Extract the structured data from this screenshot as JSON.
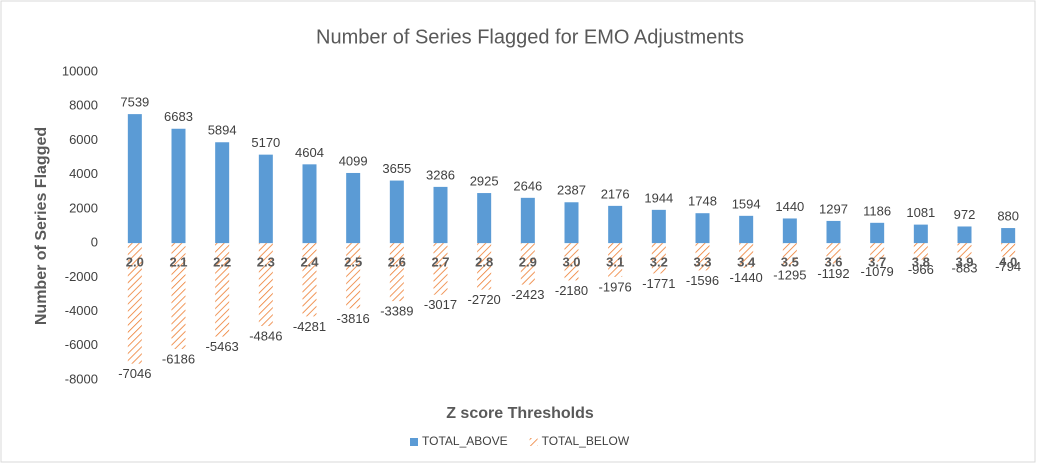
{
  "chart_data": {
    "type": "bar",
    "title": "Number of Series Flagged for EMO Adjustments",
    "x_label": "Z score Thresholds",
    "y_label": "Number of Series Flagged",
    "categories": [
      "2.0",
      "2.1",
      "2.2",
      "2.3",
      "2.4",
      "2.5",
      "2.6",
      "2.7",
      "2.8",
      "2.9",
      "3.0",
      "3.1",
      "3.2",
      "3.3",
      "3.4",
      "3.5",
      "3.6",
      "3.7",
      "3.8",
      "3.9",
      "4.0"
    ],
    "series": [
      {
        "name": "TOTAL_ABOVE",
        "color": "#5b9bd5",
        "fill": "solid",
        "values": [
          7539,
          6683,
          5894,
          5170,
          4604,
          4099,
          3655,
          3286,
          2925,
          2646,
          2387,
          2176,
          1944,
          1748,
          1594,
          1440,
          1297,
          1186,
          1081,
          972,
          880
        ]
      },
      {
        "name": "TOTAL_BELOW",
        "color": "#ed7d31",
        "fill": "hatch",
        "values": [
          -7046,
          -6186,
          -5463,
          -4846,
          -4281,
          -3816,
          -3389,
          -3017,
          -2720,
          -2423,
          -2180,
          -1976,
          -1771,
          -1596,
          -1440,
          -1295,
          -1192,
          -1079,
          -966,
          -883,
          -794
        ]
      }
    ],
    "ylim": [
      -8000,
      10000
    ],
    "yticks": [
      -8000,
      -6000,
      -4000,
      -2000,
      0,
      2000,
      4000,
      6000,
      8000,
      10000
    ],
    "grid": false,
    "legend": "bottom"
  }
}
